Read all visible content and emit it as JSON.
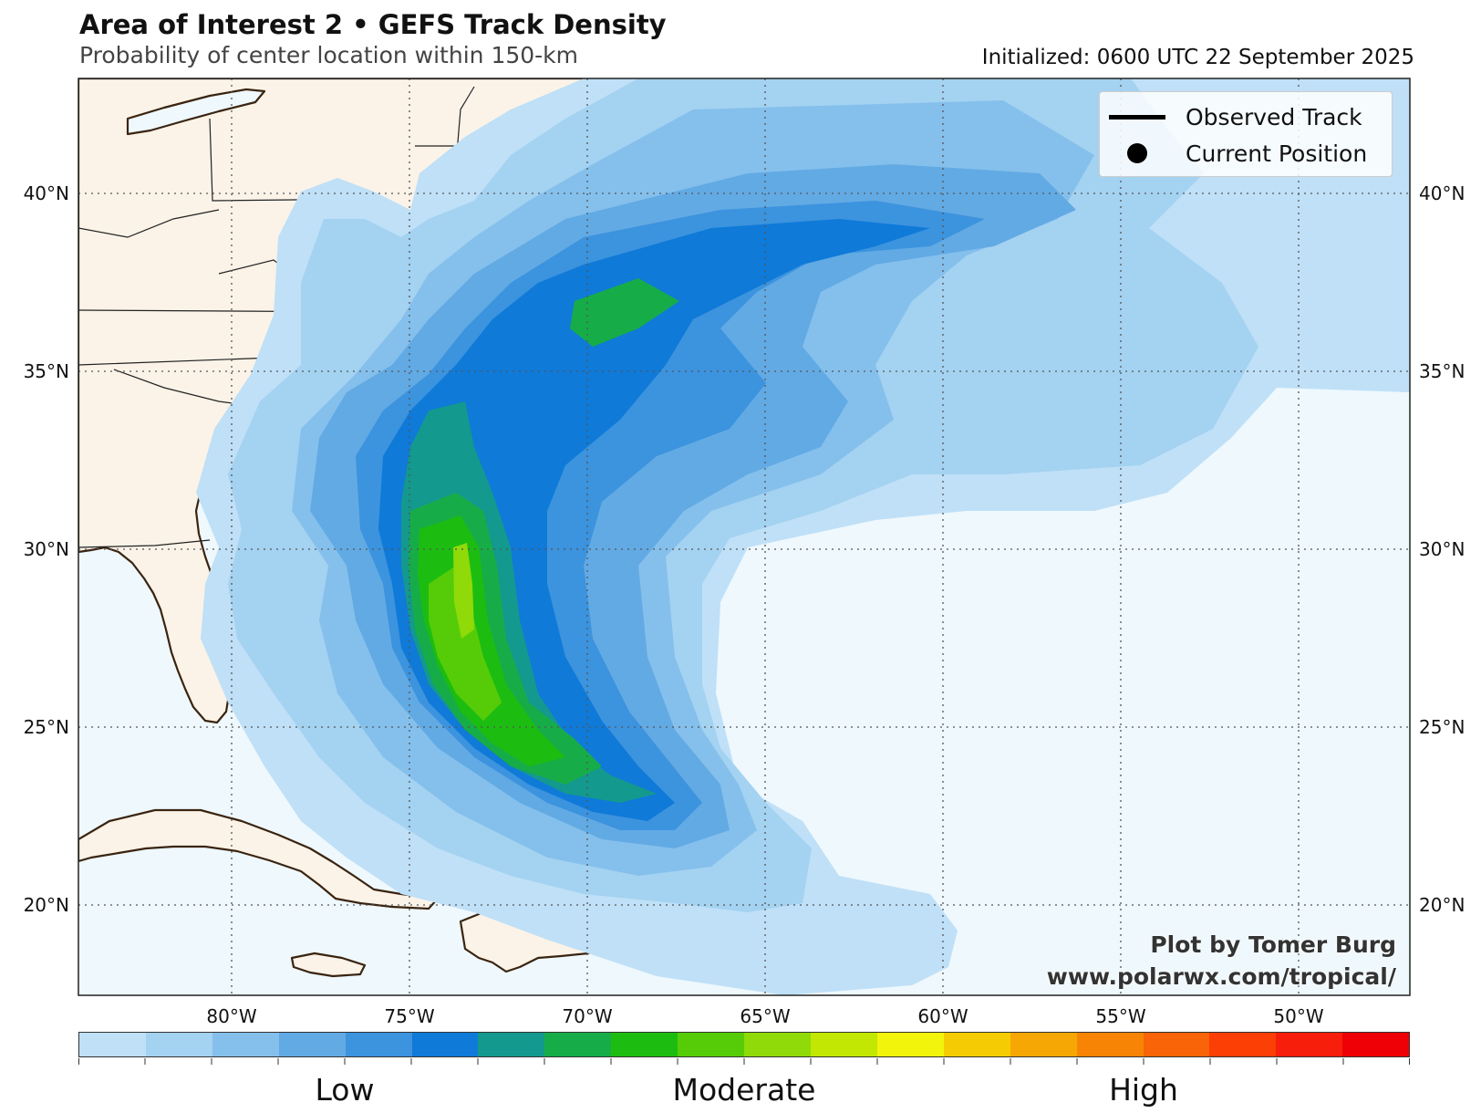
{
  "header": {
    "title": "Area of Interest 2 • GEFS Track Density",
    "subtitle": "Probability of center location within 150-km",
    "initialized": "Initialized: 0600 UTC 22 September 2025"
  },
  "map": {
    "lat_labels": [
      "40°N",
      "35°N",
      "30°N",
      "25°N",
      "20°N"
    ],
    "lon_labels": [
      "80°W",
      "75°W",
      "70°W",
      "65°W",
      "60°W",
      "55°W",
      "50°W"
    ],
    "colors": {
      "ocean": "#eef8fd",
      "land": "#fbf3e8",
      "coast": "#3a2410",
      "border": "#222222"
    }
  },
  "legend": {
    "observed_track": "Observed Track",
    "current_position": "Current Position"
  },
  "credit": {
    "line1": "Plot by Tomer Burg",
    "line2": "www.polarwx.com/tropical/"
  },
  "colorbar": {
    "colors": [
      "#bfe0f7",
      "#a4d2f1",
      "#85c0ec",
      "#62aae4",
      "#3c93de",
      "#0f7ad8",
      "#13998e",
      "#16ad48",
      "#1cbd10",
      "#56cc09",
      "#8fda08",
      "#c2e703",
      "#f3f40c",
      "#f5cc04",
      "#f7a703",
      "#f88405",
      "#f86407",
      "#fb3f05",
      "#f71e0b",
      "#ee0006"
    ],
    "labels": [
      "Low",
      "Moderate",
      "High"
    ]
  }
}
